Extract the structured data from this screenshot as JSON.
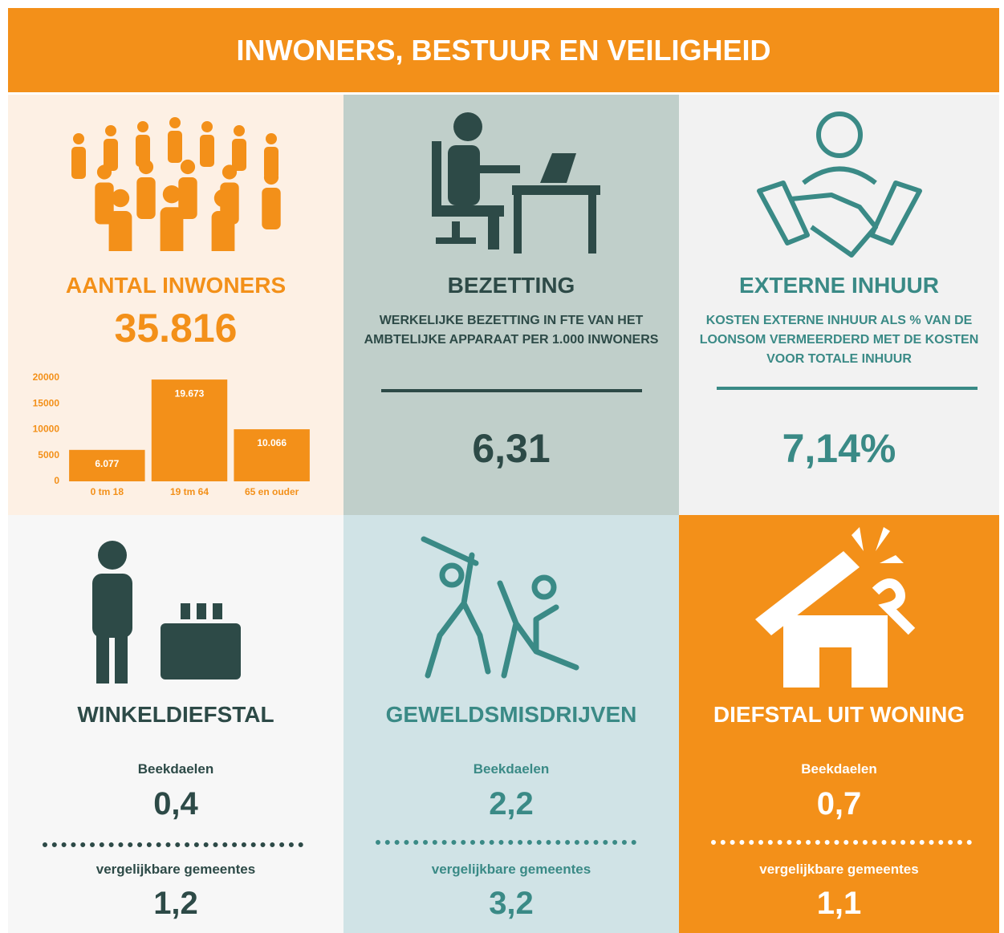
{
  "header": {
    "title": "INWONERS, BESTUUR EN VEILIGHEID"
  },
  "panels": [
    {
      "title": "AANTAL INWONERS",
      "value": "35.816"
    },
    {
      "title": "BEZETTING",
      "description": "WERKELIJKE BEZETTING IN FTE VAN HET AMBTELIJKE APPARAAT PER 1.000 INWONERS",
      "value": "6,31"
    },
    {
      "title": "EXTERNE INHUUR",
      "description": "KOSTEN EXTERNE INHUUR ALS % VAN DE LOONSOM VERMEERDERD MET DE KOSTEN VOOR TOTALE INHUUR",
      "value": "7,14%"
    },
    {
      "title": "WINKELDIEFSTAL",
      "label_a": "Beekdaelen",
      "value_a": "0,4",
      "label_b": "vergelijkbare gemeentes",
      "value_b": "1,2"
    },
    {
      "title": "GEWELDSMISDRIJVEN",
      "label_a": "Beekdaelen",
      "value_a": "2,2",
      "label_b": "vergelijkbare gemeentes",
      "value_b": "3,2"
    },
    {
      "title": "DIEFSTAL UIT WONING",
      "label_a": "Beekdaelen",
      "value_a": "0,7",
      "label_b": "vergelijkbare gemeentes",
      "value_b": "1,1"
    }
  ],
  "chart_data": {
    "type": "bar",
    "categories": [
      "0 tm 18",
      "19 tm 64",
      "65 en ouder"
    ],
    "values": [
      6077,
      19673,
      10066
    ],
    "value_labels": [
      "6.077",
      "19.673",
      "10.066"
    ],
    "color": "#f39019",
    "ylim": [
      0,
      20000
    ],
    "yticks": [
      0,
      5000,
      10000,
      15000,
      20000
    ]
  }
}
